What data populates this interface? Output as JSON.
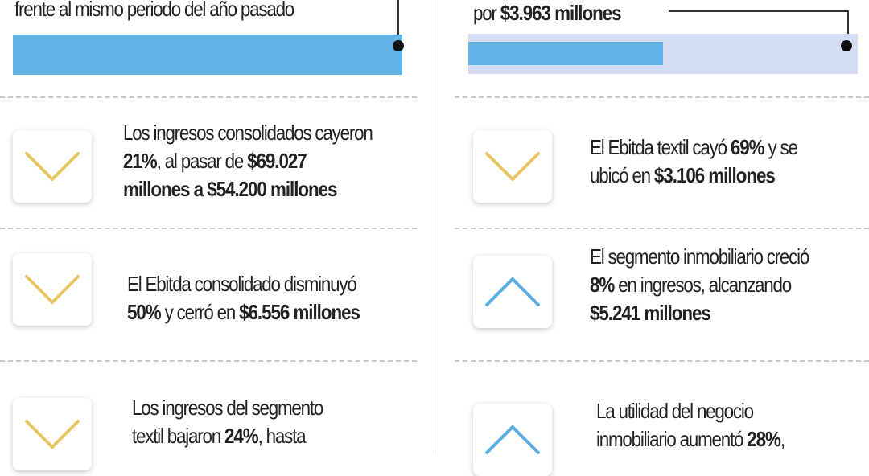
{
  "top": {
    "left_caption": "frente al mismo periodo del año pasado",
    "right_prefix": "por ",
    "right_value": "$3.963 millones",
    "right_bar_fill_fraction": 0.5
  },
  "colors": {
    "down_arrow": "#e8c562",
    "up_arrow": "#5aaee0",
    "bar": "#63b4e6",
    "bar_track": "#d2dcf2"
  },
  "left": [
    {
      "icon": "chevron-down-icon",
      "lines": [
        [
          {
            "t": "Los ingresos consolidados cayeron",
            "b": false
          }
        ],
        [
          {
            "t": "21%",
            "b": true
          },
          {
            "t": ", al pasar de ",
            "b": false
          },
          {
            "t": "$69.027",
            "b": true
          }
        ],
        [
          {
            "t": "millones a $54.200 millones",
            "b": true
          }
        ]
      ]
    },
    {
      "icon": "chevron-down-icon",
      "lines": [
        [
          {
            "t": "El Ebitda consolidado disminuyó",
            "b": false
          }
        ],
        [
          {
            "t": "50%",
            "b": true
          },
          {
            "t": " y cerró en ",
            "b": false
          },
          {
            "t": "$6.556 millones",
            "b": true
          }
        ]
      ]
    },
    {
      "icon": "chevron-down-icon",
      "lines": [
        [
          {
            "t": "Los ingresos del segmento",
            "b": false
          }
        ],
        [
          {
            "t": "textil bajaron ",
            "b": false
          },
          {
            "t": "24%",
            "b": true
          },
          {
            "t": ", hasta",
            "b": false
          }
        ]
      ]
    }
  ],
  "right": [
    {
      "icon": "chevron-down-icon",
      "lines": [
        [
          {
            "t": "El Ebitda textil cayó ",
            "b": false
          },
          {
            "t": "69%",
            "b": true
          },
          {
            "t": " y se",
            "b": false
          }
        ],
        [
          {
            "t": "ubicó en ",
            "b": false
          },
          {
            "t": "$3.106 millones",
            "b": true
          }
        ]
      ]
    },
    {
      "icon": "chevron-up-icon",
      "lines": [
        [
          {
            "t": "El segmento inmobiliario creció",
            "b": false
          }
        ],
        [
          {
            "t": "8%",
            "b": true
          },
          {
            "t": " en ingresos, alcanzando",
            "b": false
          }
        ],
        [
          {
            "t": "$5.241 millones",
            "b": true
          }
        ]
      ]
    },
    {
      "icon": "chevron-up-icon",
      "lines": [
        [
          {
            "t": "La utilidad del negocio",
            "b": false
          }
        ],
        [
          {
            "t": "inmobiliario aumentó ",
            "b": false
          },
          {
            "t": "28%",
            "b": true
          },
          {
            "t": ",",
            "b": false
          }
        ]
      ]
    }
  ]
}
